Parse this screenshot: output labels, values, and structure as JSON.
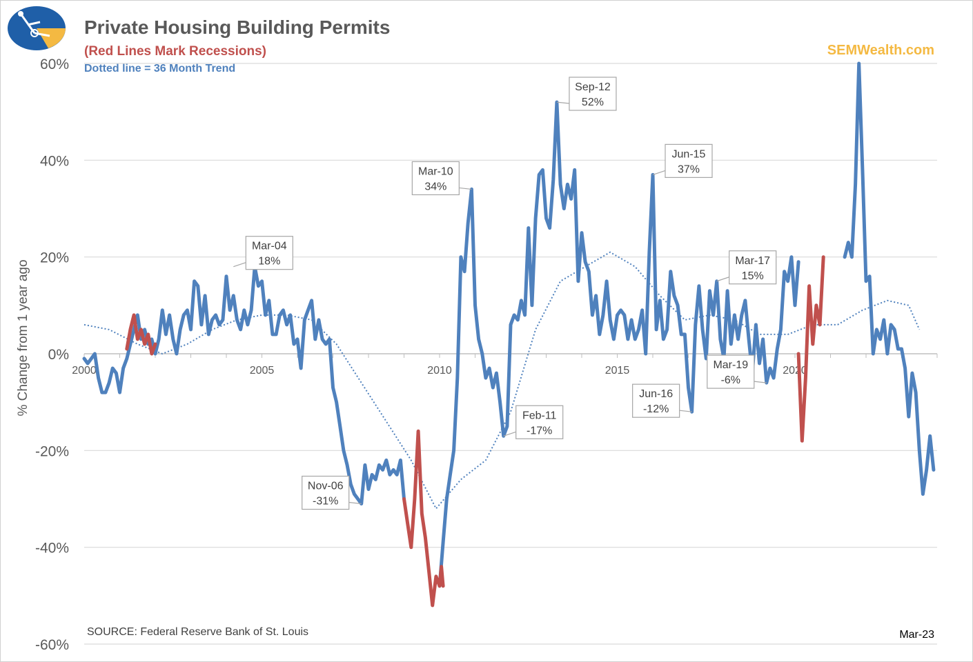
{
  "header": {
    "title": "Private Housing Building Permits",
    "subtitle": "(Red Lines Mark Recessions)",
    "trend_note": "Dotted line = 36 Month Trend",
    "brand": "SEMWealth.com"
  },
  "footer": {
    "source": "SOURCE:  Federal Reserve Bank of St. Louis",
    "date": "Mar-23"
  },
  "colors": {
    "series": "#4f81bd",
    "recession": "#c0504d",
    "trend": "#4f81bd",
    "grid": "#d9d9d9",
    "brand": "#f4b942"
  },
  "chart_data": {
    "type": "line",
    "title": "Private Housing Building Permits",
    "ylabel": "% Change from 1 year ago",
    "ylim": [
      -60,
      60
    ],
    "y_ticks": [
      60,
      40,
      20,
      0,
      -20,
      -40,
      -60
    ],
    "y_tick_labels": [
      "60%",
      "40%",
      "20%",
      "0%",
      "-20%",
      "-40%",
      "-60%"
    ],
    "x_tick_labels": [
      "2000",
      "2005",
      "2010",
      "2015",
      "2020"
    ],
    "x_tick_values": [
      2000,
      2005,
      2010,
      2015,
      2020
    ],
    "xlim": [
      2000.0,
      2023.2
    ],
    "grid": true,
    "series": [
      {
        "name": "Annual % change",
        "style": "solid",
        "points": [
          [
            2000.0,
            -1
          ],
          [
            2000.1,
            -2
          ],
          [
            2000.2,
            -1
          ],
          [
            2000.3,
            0
          ],
          [
            2000.4,
            -5
          ],
          [
            2000.5,
            -8
          ],
          [
            2000.6,
            -8
          ],
          [
            2000.7,
            -6
          ],
          [
            2000.8,
            -3
          ],
          [
            2000.9,
            -4
          ],
          [
            2001.0,
            -8
          ],
          [
            2001.1,
            -3
          ],
          [
            2001.2,
            -1
          ],
          [
            2001.3,
            2
          ],
          [
            2001.4,
            5
          ],
          [
            2001.5,
            8
          ],
          [
            2001.6,
            3
          ],
          [
            2001.7,
            5
          ],
          [
            2001.8,
            2
          ],
          [
            2001.9,
            3
          ],
          [
            2002.0,
            0
          ],
          [
            2002.1,
            3
          ],
          [
            2002.2,
            9
          ],
          [
            2002.3,
            4
          ],
          [
            2002.4,
            8
          ],
          [
            2002.5,
            3
          ],
          [
            2002.6,
            0
          ],
          [
            2002.7,
            5
          ],
          [
            2002.8,
            8
          ],
          [
            2002.9,
            9
          ],
          [
            2003.0,
            5
          ],
          [
            2003.1,
            15
          ],
          [
            2003.2,
            14
          ],
          [
            2003.3,
            6
          ],
          [
            2003.4,
            12
          ],
          [
            2003.5,
            4
          ],
          [
            2003.6,
            7
          ],
          [
            2003.7,
            8
          ],
          [
            2003.8,
            6
          ],
          [
            2003.9,
            7
          ],
          [
            2004.0,
            16
          ],
          [
            2004.1,
            9
          ],
          [
            2004.2,
            12
          ],
          [
            2004.3,
            7
          ],
          [
            2004.4,
            5
          ],
          [
            2004.5,
            9
          ],
          [
            2004.6,
            6
          ],
          [
            2004.7,
            9
          ],
          [
            2004.8,
            18
          ],
          [
            2004.9,
            14
          ],
          [
            2005.0,
            15
          ],
          [
            2005.1,
            8
          ],
          [
            2005.2,
            11
          ],
          [
            2005.3,
            4
          ],
          [
            2005.4,
            4
          ],
          [
            2005.5,
            8
          ],
          [
            2005.6,
            9
          ],
          [
            2005.7,
            6
          ],
          [
            2005.8,
            8
          ],
          [
            2005.9,
            2
          ],
          [
            2006.0,
            3
          ],
          [
            2006.1,
            -3
          ],
          [
            2006.2,
            7
          ],
          [
            2006.3,
            9
          ],
          [
            2006.4,
            11
          ],
          [
            2006.5,
            3
          ],
          [
            2006.6,
            7
          ],
          [
            2006.7,
            3
          ],
          [
            2006.8,
            2
          ],
          [
            2006.9,
            3
          ],
          [
            2007.0,
            -7
          ],
          [
            2007.1,
            -10
          ],
          [
            2007.2,
            -15
          ],
          [
            2007.3,
            -20
          ],
          [
            2007.4,
            -23
          ],
          [
            2007.5,
            -27
          ],
          [
            2007.6,
            -29
          ],
          [
            2007.7,
            -30
          ],
          [
            2007.8,
            -31
          ],
          [
            2007.9,
            -23
          ],
          [
            2008.0,
            -28
          ],
          [
            2008.1,
            -25
          ],
          [
            2008.2,
            -26
          ],
          [
            2008.3,
            -23
          ],
          [
            2008.4,
            -24
          ],
          [
            2008.5,
            -22
          ],
          [
            2008.6,
            -25
          ],
          [
            2008.7,
            -24
          ],
          [
            2008.8,
            -25
          ],
          [
            2008.9,
            -22
          ],
          [
            2009.0,
            -30
          ]
        ]
      },
      {
        "name": "Annual % change (cont.)",
        "style": "solid",
        "points": [
          [
            2010.0,
            -48
          ],
          [
            2010.1,
            -39
          ],
          [
            2010.2,
            -30
          ],
          [
            2010.3,
            -25
          ],
          [
            2010.4,
            -20
          ],
          [
            2010.5,
            -5
          ],
          [
            2010.6,
            20
          ],
          [
            2010.7,
            17
          ],
          [
            2010.8,
            27
          ],
          [
            2010.9,
            34
          ],
          [
            2011.0,
            10
          ],
          [
            2011.1,
            3
          ],
          [
            2011.2,
            0
          ],
          [
            2011.3,
            -5
          ],
          [
            2011.4,
            -3
          ],
          [
            2011.5,
            -7
          ],
          [
            2011.6,
            -4
          ],
          [
            2011.7,
            -10
          ],
          [
            2011.8,
            -17
          ],
          [
            2011.9,
            -15
          ],
          [
            2012.0,
            6
          ],
          [
            2012.1,
            8
          ],
          [
            2012.2,
            7
          ],
          [
            2012.3,
            11
          ],
          [
            2012.4,
            8
          ],
          [
            2012.5,
            26
          ],
          [
            2012.6,
            10
          ],
          [
            2012.7,
            28
          ],
          [
            2012.8,
            37
          ],
          [
            2012.9,
            38
          ],
          [
            2013.0,
            28
          ],
          [
            2013.1,
            26
          ],
          [
            2013.2,
            36
          ],
          [
            2013.3,
            52
          ],
          [
            2013.4,
            35
          ],
          [
            2013.5,
            30
          ],
          [
            2013.6,
            35
          ],
          [
            2013.7,
            32
          ],
          [
            2013.8,
            38
          ],
          [
            2013.9,
            15
          ],
          [
            2014.0,
            25
          ],
          [
            2014.1,
            19
          ],
          [
            2014.2,
            17
          ],
          [
            2014.3,
            8
          ],
          [
            2014.4,
            12
          ],
          [
            2014.5,
            4
          ],
          [
            2014.6,
            8
          ],
          [
            2014.7,
            15
          ],
          [
            2014.8,
            7
          ],
          [
            2014.9,
            3
          ],
          [
            2015.0,
            8
          ],
          [
            2015.1,
            9
          ],
          [
            2015.2,
            8
          ],
          [
            2015.3,
            3
          ],
          [
            2015.4,
            7
          ],
          [
            2015.5,
            3
          ],
          [
            2015.6,
            5
          ],
          [
            2015.7,
            9
          ],
          [
            2015.8,
            0
          ],
          [
            2015.9,
            21
          ],
          [
            2016.0,
            37
          ],
          [
            2016.1,
            5
          ],
          [
            2016.2,
            11
          ],
          [
            2016.3,
            3
          ],
          [
            2016.4,
            5
          ],
          [
            2016.5,
            17
          ],
          [
            2016.6,
            12
          ],
          [
            2016.7,
            10
          ],
          [
            2016.8,
            4
          ],
          [
            2016.9,
            4
          ],
          [
            2017.0,
            -7
          ],
          [
            2017.1,
            -12
          ],
          [
            2017.2,
            6
          ],
          [
            2017.3,
            14
          ],
          [
            2017.4,
            5
          ],
          [
            2017.5,
            -1
          ],
          [
            2017.6,
            13
          ],
          [
            2017.7,
            8
          ],
          [
            2017.8,
            15
          ],
          [
            2017.9,
            3
          ],
          [
            2018.0,
            -1
          ],
          [
            2018.1,
            13
          ],
          [
            2018.2,
            2
          ],
          [
            2018.3,
            8
          ],
          [
            2018.4,
            3
          ],
          [
            2018.5,
            8
          ],
          [
            2018.6,
            11
          ],
          [
            2018.7,
            3
          ],
          [
            2018.8,
            -4
          ],
          [
            2018.9,
            6
          ],
          [
            2019.0,
            -2
          ],
          [
            2019.1,
            3
          ],
          [
            2019.2,
            -6
          ],
          [
            2019.3,
            -3
          ],
          [
            2019.4,
            -5
          ],
          [
            2019.5,
            1
          ],
          [
            2019.6,
            5
          ],
          [
            2019.7,
            17
          ],
          [
            2019.8,
            15
          ],
          [
            2019.9,
            20
          ],
          [
            2020.0,
            10
          ],
          [
            2020.1,
            19
          ]
        ]
      },
      {
        "name": "Annual % change (late)",
        "style": "solid",
        "points": [
          [
            2021.4,
            20
          ],
          [
            2021.5,
            23
          ],
          [
            2021.6,
            20
          ],
          [
            2021.7,
            35
          ],
          [
            2021.8,
            60
          ],
          [
            2021.9,
            38
          ],
          [
            2022.0,
            15
          ],
          [
            2022.1,
            16
          ],
          [
            2022.2,
            0
          ],
          [
            2022.3,
            5
          ],
          [
            2022.4,
            3
          ],
          [
            2022.5,
            7
          ],
          [
            2022.6,
            0
          ],
          [
            2022.7,
            6
          ],
          [
            2022.8,
            5
          ],
          [
            2022.9,
            1
          ],
          [
            2023.0,
            1
          ],
          [
            2023.1,
            -3
          ],
          [
            2023.2,
            -13
          ],
          [
            2023.3,
            -4
          ],
          [
            2023.4,
            -8
          ],
          [
            2023.5,
            -20
          ],
          [
            2023.6,
            -29
          ],
          [
            2023.7,
            -24
          ],
          [
            2023.8,
            -17
          ],
          [
            2023.9,
            -24
          ]
        ]
      }
    ],
    "recession_segments": [
      [
        [
          2001.2,
          1
        ],
        [
          2001.3,
          5
        ],
        [
          2001.4,
          8
        ],
        [
          2001.5,
          3
        ],
        [
          2001.6,
          5
        ],
        [
          2001.7,
          2
        ],
        [
          2001.8,
          4
        ],
        [
          2001.9,
          0
        ],
        [
          2002.0,
          2
        ]
      ],
      [
        [
          2009.0,
          -30
        ],
        [
          2009.1,
          -35
        ],
        [
          2009.2,
          -40
        ],
        [
          2009.3,
          -30
        ],
        [
          2009.4,
          -16
        ],
        [
          2009.5,
          -33
        ],
        [
          2009.6,
          -38
        ],
        [
          2009.7,
          -45
        ],
        [
          2009.8,
          -52
        ],
        [
          2009.9,
          -46
        ],
        [
          2010.0,
          -48
        ],
        [
          2010.05,
          -44
        ],
        [
          2010.1,
          -48
        ]
      ],
      [
        [
          2020.1,
          0
        ],
        [
          2020.2,
          -18
        ],
        [
          2020.3,
          -5
        ],
        [
          2020.4,
          14
        ],
        [
          2020.5,
          2
        ],
        [
          2020.6,
          10
        ],
        [
          2020.7,
          6
        ],
        [
          2020.8,
          20
        ]
      ]
    ],
    "trend": {
      "name": "36 Month Trend",
      "style": "dotted",
      "points": [
        [
          2000.0,
          6
        ],
        [
          2000.7,
          5
        ],
        [
          2001.5,
          2
        ],
        [
          2002.2,
          0
        ],
        [
          2002.9,
          2
        ],
        [
          2003.6,
          5
        ],
        [
          2004.3,
          7
        ],
        [
          2005.0,
          8
        ],
        [
          2005.7,
          8
        ],
        [
          2006.4,
          7
        ],
        [
          2007.1,
          2
        ],
        [
          2007.8,
          -6
        ],
        [
          2008.5,
          -14
        ],
        [
          2009.2,
          -22
        ],
        [
          2009.9,
          -32
        ],
        [
          2010.6,
          -26
        ],
        [
          2011.3,
          -22
        ],
        [
          2012.0,
          -12
        ],
        [
          2012.7,
          5
        ],
        [
          2013.4,
          15
        ],
        [
          2014.1,
          18
        ],
        [
          2014.8,
          21
        ],
        [
          2015.5,
          18
        ],
        [
          2016.2,
          12
        ],
        [
          2016.9,
          7
        ],
        [
          2017.6,
          8
        ],
        [
          2018.3,
          7
        ],
        [
          2019.0,
          4
        ],
        [
          2019.8,
          4
        ],
        [
          2020.5,
          6
        ],
        [
          2021.2,
          6
        ],
        [
          2021.9,
          9
        ],
        [
          2022.6,
          11
        ],
        [
          2023.2,
          10
        ],
        [
          2023.5,
          5
        ]
      ]
    },
    "annotations": [
      {
        "label": "Mar-04",
        "value": "18%",
        "x": 2004.2,
        "y": 18,
        "anchor": "left"
      },
      {
        "label": "Nov-06",
        "value": "-31%",
        "x": 2007.8,
        "y": -31,
        "anchor": "right"
      },
      {
        "label": "Mar-10",
        "value": "34%",
        "x": 2010.9,
        "y": 34,
        "anchor": "right"
      },
      {
        "label": "Feb-11",
        "value": "-17%",
        "x": 2011.8,
        "y": -17,
        "anchor": "left"
      },
      {
        "label": "Sep-12",
        "value": "52%",
        "x": 2013.3,
        "y": 52,
        "anchor": "left"
      },
      {
        "label": "Jun-15",
        "value": "37%",
        "x": 2016.0,
        "y": 37,
        "anchor": "left"
      },
      {
        "label": "Jun-16",
        "value": "-12%",
        "x": 2017.1,
        "y": -12,
        "anchor": "right"
      },
      {
        "label": "Mar-17",
        "value": "15%",
        "x": 2017.8,
        "y": 15,
        "anchor": "left"
      },
      {
        "label": "Mar-19",
        "value": "-6%",
        "x": 2019.2,
        "y": -6,
        "anchor": "right"
      }
    ]
  }
}
